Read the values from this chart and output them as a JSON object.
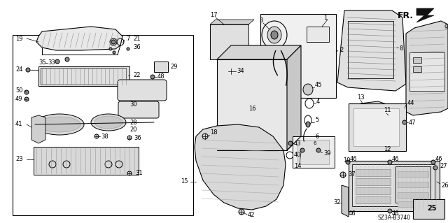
{
  "background_color": "#ffffff",
  "diagram_code": "SZ3A-B3740",
  "figsize": [
    6.4,
    3.19
  ],
  "dpi": 100,
  "lc": "#000000",
  "gc": "#aaaaaa"
}
